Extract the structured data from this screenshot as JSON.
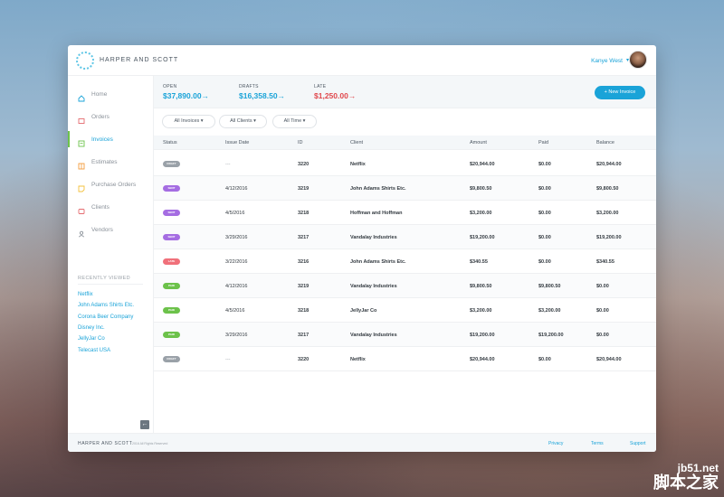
{
  "brand": {
    "name": "HARPER AND SCOTT"
  },
  "user": {
    "name": "Kanye West",
    "caret": "▾"
  },
  "sidebar": {
    "items": [
      {
        "label": "Home",
        "icon": "home-icon",
        "color": "#1aa3d8"
      },
      {
        "label": "Orders",
        "icon": "orders-icon",
        "color": "#e56b6f"
      },
      {
        "label": "Invoices",
        "icon": "invoices-icon",
        "color": "#6cc24a"
      },
      {
        "label": "Estimates",
        "icon": "estimates-icon",
        "color": "#f39c3c"
      },
      {
        "label": "Purchase Orders",
        "icon": "purchase-orders-icon",
        "color": "#f3c13c"
      },
      {
        "label": "Clients",
        "icon": "clients-icon",
        "color": "#e56b6f"
      },
      {
        "label": "Vendors",
        "icon": "vendors-icon",
        "color": "#8a9199"
      }
    ],
    "recent_title": "RECENTLY VIEWED",
    "recent": [
      "Netflix",
      "John Adams Shirts Etc.",
      "Corona Beer Company",
      "Disney Inc.",
      "JellyJar Co",
      "Telecast USA"
    ]
  },
  "summary": {
    "open": {
      "label": "OPEN",
      "value": "$37,890.00",
      "arrow": "→",
      "color": "#1aa3d8"
    },
    "drafts": {
      "label": "DRAFTS",
      "value": "$16,358.50",
      "arrow": "→",
      "color": "#1aa3d8"
    },
    "late": {
      "label": "LATE",
      "value": "$1,250.00",
      "arrow": "→",
      "color": "#e0474c"
    },
    "new_invoice": "+ New Invoice"
  },
  "filters": [
    "All Invoices ▾",
    "All Clients ▾",
    "All Time ▾"
  ],
  "table": {
    "headers": [
      "Status",
      "Issue Date",
      "ID",
      "Client",
      "Amount",
      "Paid",
      "Balance"
    ],
    "rows": [
      {
        "status": "DRAFT",
        "status_color": "#9aa1a8",
        "date": "---",
        "id": "3220",
        "client": "Netflix",
        "amount": "$20,944.00",
        "paid": "$0.00",
        "balance": "$20,944.00"
      },
      {
        "status": "SENT",
        "status_color": "#a56de2",
        "date": "4/12/2016",
        "id": "3219",
        "client": "John Adams Shirts Etc.",
        "amount": "$9,800.50",
        "paid": "$0.00",
        "balance": "$9,800.50"
      },
      {
        "status": "SENT",
        "status_color": "#a56de2",
        "date": "4/5/2016",
        "id": "3218",
        "client": "Hoffman and Hoffman",
        "amount": "$3,200.00",
        "paid": "$0.00",
        "balance": "$3,200.00"
      },
      {
        "status": "SENT",
        "status_color": "#a56de2",
        "date": "3/29/2016",
        "id": "3217",
        "client": "Vandalay Industries",
        "amount": "$19,200.00",
        "paid": "$0.00",
        "balance": "$19,200.00"
      },
      {
        "status": "LATE",
        "status_color": "#f0707a",
        "date": "3/22/2016",
        "id": "3216",
        "client": "John Adams Shirts Etc.",
        "amount": "$340.55",
        "paid": "$0.00",
        "balance": "$340.55"
      },
      {
        "status": "PAID",
        "status_color": "#6cc24a",
        "date": "4/12/2016",
        "id": "3219",
        "client": "Vandalay Industries",
        "amount": "$9,800.50",
        "paid": "$9,800.50",
        "balance": "$0.00"
      },
      {
        "status": "PAID",
        "status_color": "#6cc24a",
        "date": "4/5/2016",
        "id": "3218",
        "client": "JellyJar Co",
        "amount": "$3,200.00",
        "paid": "$3,200.00",
        "balance": "$0.00"
      },
      {
        "status": "PAID",
        "status_color": "#6cc24a",
        "date": "3/29/2016",
        "id": "3217",
        "client": "Vandalay Industries",
        "amount": "$19,200.00",
        "paid": "$19,200.00",
        "balance": "$0.00"
      },
      {
        "status": "DRAFT",
        "status_color": "#9aa1a8",
        "date": "---",
        "id": "3220",
        "client": "Netflix",
        "amount": "$20,944.00",
        "paid": "$0.00",
        "balance": "$20,944.00"
      }
    ]
  },
  "footer": {
    "brand": "HARPER AND SCOTT",
    "copyright": "2016 All Rights Reserved",
    "links": [
      "Privacy",
      "Terms",
      "Support"
    ]
  },
  "collapse": {
    "icon": "collapse-arrow-icon",
    "glyph": "←"
  },
  "watermark": {
    "line1": "jb51.net",
    "line2": "脚本之家"
  }
}
